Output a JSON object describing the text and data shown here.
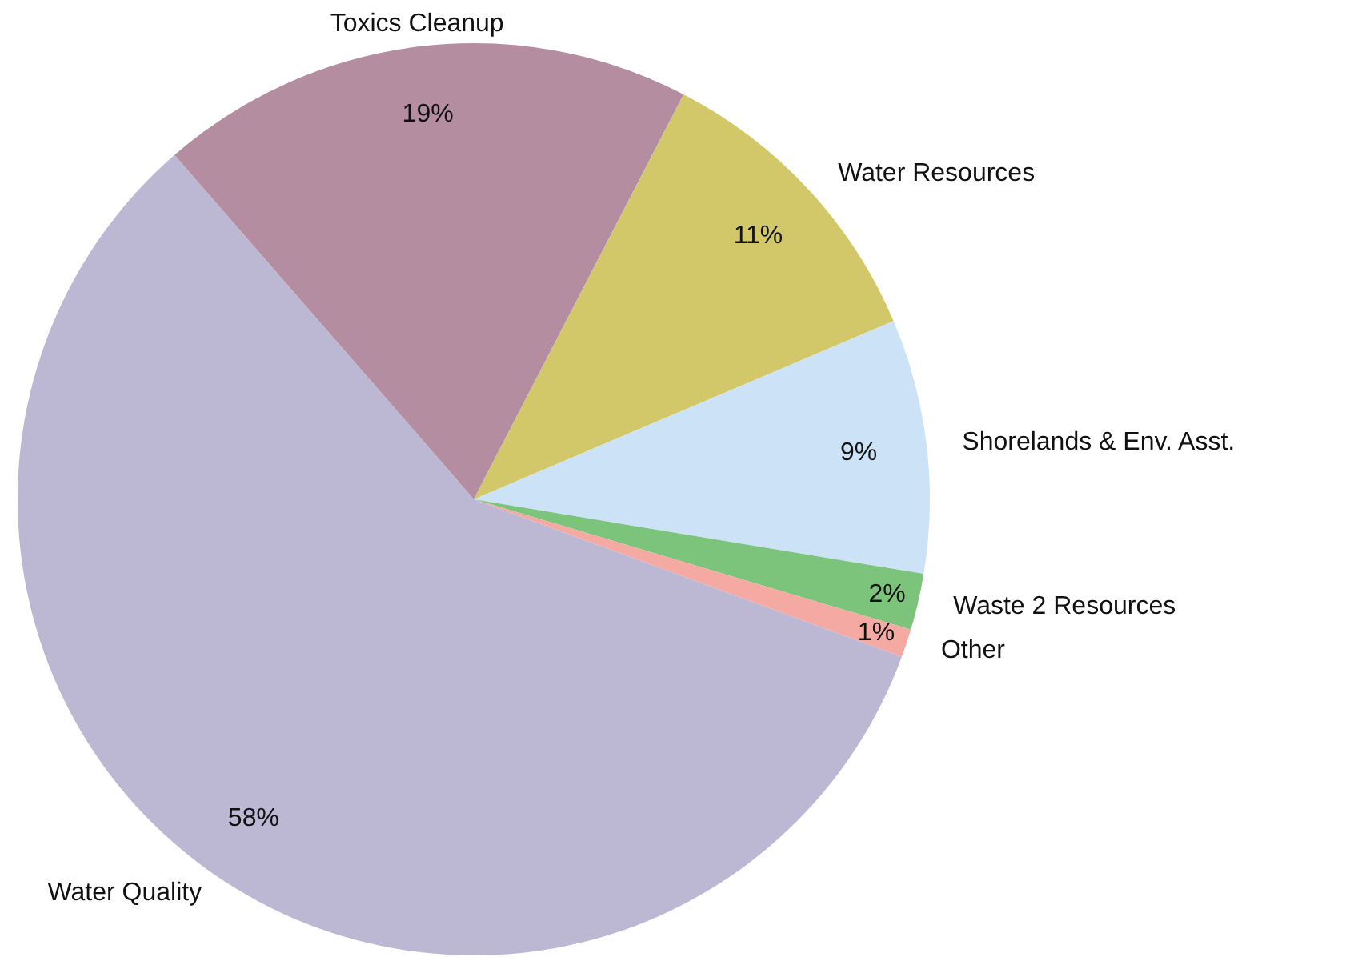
{
  "chart_data": {
    "type": "pie",
    "categories": [
      "Toxics Cleanup",
      "Water Resources",
      "Shorelands & Env. Asst.",
      "Waste 2 Resources",
      "Other",
      "Water Quality"
    ],
    "values": [
      19,
      11,
      9,
      2,
      1,
      58
    ],
    "value_labels": [
      "19%",
      "11%",
      "9%",
      "2%",
      "1%",
      "58%"
    ],
    "colors": [
      "#b48ea0",
      "#d2c86a",
      "#cce2f6",
      "#7cc47c",
      "#f4aaa2",
      "#bcb8d4"
    ],
    "legend": false
  }
}
